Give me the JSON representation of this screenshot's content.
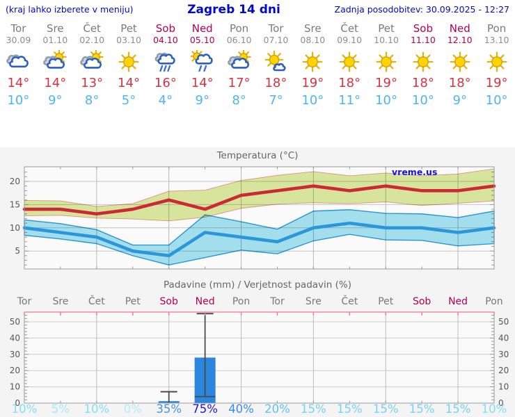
{
  "header": {
    "left_note": "(kraj lahko izberete v meniju)",
    "title": "Zagreb 14 dni",
    "updated": "Zadnja posodobitev: 30.09.2025 - 12:27"
  },
  "colors": {
    "header_blue": "#0009cc",
    "weekday_gray": "#7b7b7b",
    "weekend_crimson": "#b40051",
    "high_temp_red": "#d63240",
    "low_temp_blue": "#4cb5f0",
    "max_band_fill": "#dcea9f",
    "max_band_edge": "#e8937f",
    "max_line": "#cc2936",
    "min_band_fill": "#a6e3f2",
    "min_line": "#2b97da",
    "bar_blue": "#2b87dd",
    "whisker_gray": "#4a4a4a",
    "top_axis_pink": "#e88fa2",
    "watermark_blue": "#1212e6"
  },
  "days": [
    {
      "name": "Tor",
      "date": "30.09",
      "weekend": false,
      "icon": "cloudy",
      "tmax": 14,
      "tmin": 10
    },
    {
      "name": "Sre",
      "date": "01.10",
      "weekend": false,
      "icon": "partly",
      "tmax": 14,
      "tmin": 9
    },
    {
      "name": "Čet",
      "date": "02.10",
      "weekend": false,
      "icon": "partly",
      "tmax": 13,
      "tmin": 8
    },
    {
      "name": "Pet",
      "date": "03.10",
      "weekend": false,
      "icon": "sunny",
      "tmax": 14,
      "tmin": 5
    },
    {
      "name": "Sob",
      "date": "04.10",
      "weekend": true,
      "icon": "rain",
      "tmax": 16,
      "tmin": 4
    },
    {
      "name": "Ned",
      "date": "05.10",
      "weekend": true,
      "icon": "sunrain",
      "tmax": 14,
      "tmin": 9
    },
    {
      "name": "Pon",
      "date": "06.10",
      "weekend": false,
      "icon": "partly",
      "tmax": 17,
      "tmin": 8
    },
    {
      "name": "Tor",
      "date": "07.10",
      "weekend": false,
      "icon": "mostlysunny",
      "tmax": 18,
      "tmin": 7
    },
    {
      "name": "Sre",
      "date": "08.10",
      "weekend": false,
      "icon": "sunny",
      "tmax": 19,
      "tmin": 10
    },
    {
      "name": "Čet",
      "date": "09.10",
      "weekend": false,
      "icon": "sunny",
      "tmax": 18,
      "tmin": 11
    },
    {
      "name": "Pet",
      "date": "10.10",
      "weekend": false,
      "icon": "sunny",
      "tmax": 19,
      "tmin": 10
    },
    {
      "name": "Sob",
      "date": "11.10",
      "weekend": true,
      "icon": "sunny",
      "tmax": 18,
      "tmin": 10
    },
    {
      "name": "Ned",
      "date": "12.10",
      "weekend": true,
      "icon": "sunny",
      "tmax": 18,
      "tmin": 9
    },
    {
      "name": "Pon",
      "date": "13.10",
      "weekend": false,
      "icon": "sunny",
      "tmax": 19,
      "tmin": 10
    }
  ],
  "chart_data": [
    {
      "type": "area",
      "title": "Temperatura (°C)",
      "watermark": "vreme.us",
      "categories": [
        "Tor 30.09",
        "Sre 01.10",
        "Čet 02.10",
        "Pet 03.10",
        "Sob 04.10",
        "Ned 05.10",
        "Pon 06.10",
        "Tor 07.10",
        "Sre 08.10",
        "Čet 09.10",
        "Pet 10.10",
        "Sob 11.10",
        "Ned 12.10",
        "Pon 13.10"
      ],
      "ylim": [
        1,
        23
      ],
      "yticks": [
        5,
        10,
        15,
        20
      ],
      "grid": true,
      "series": [
        {
          "name": "max",
          "values": [
            14,
            14,
            13,
            14,
            16,
            14,
            17,
            18,
            19,
            18,
            19,
            18,
            18,
            19
          ]
        },
        {
          "name": "max_upper",
          "values": [
            15.9,
            15.8,
            14.6,
            15.2,
            17.9,
            18.1,
            20.2,
            21.3,
            22.1,
            21.2,
            21.8,
            21.2,
            21.6,
            22.7
          ]
        },
        {
          "name": "max_lower",
          "values": [
            12.6,
            12.7,
            12.1,
            11.9,
            11.5,
            12.3,
            14.2,
            15.1,
            15.4,
            15.2,
            15.6,
            14.8,
            15.3,
            15.8
          ]
        },
        {
          "name": "min",
          "values": [
            10,
            9,
            8,
            5,
            4,
            9,
            8,
            7,
            10,
            11,
            10,
            10,
            9,
            10
          ]
        },
        {
          "name": "min_upper",
          "values": [
            11.7,
            10.9,
            9.6,
            6.3,
            6.3,
            12.8,
            11.3,
            9.7,
            13.6,
            13.9,
            13.1,
            13.0,
            12.2,
            13.6
          ]
        },
        {
          "name": "min_lower",
          "values": [
            8.4,
            7.6,
            6.6,
            4.0,
            2.0,
            3.6,
            5.2,
            4.4,
            7.2,
            8.6,
            7.4,
            7.3,
            6.1,
            6.6
          ]
        }
      ]
    },
    {
      "type": "bar",
      "title": "Padavine (mm) / Verjetnost padavin (%)",
      "categories": [
        "Tor",
        "Sre",
        "Čet",
        "Pet",
        "Sob",
        "Ned",
        "Pon",
        "Tor",
        "Sre",
        "Čet",
        "Pet",
        "Sob",
        "Ned",
        "Pon"
      ],
      "weekend": [
        false,
        false,
        false,
        false,
        true,
        true,
        false,
        false,
        false,
        false,
        false,
        true,
        true,
        false
      ],
      "values_mm": [
        0,
        0,
        0,
        0,
        1.2,
        28,
        0,
        0,
        0,
        0,
        0,
        0,
        0,
        0
      ],
      "whisker_low": [
        0,
        0,
        0,
        0,
        0,
        4,
        0,
        0,
        0,
        0,
        0,
        0,
        0,
        0
      ],
      "whisker_high": [
        0,
        0,
        0,
        0,
        7,
        55,
        0,
        0,
        0,
        0,
        0,
        0,
        0,
        0
      ],
      "probability_pct": [
        10,
        5,
        10,
        0,
        35,
        75,
        40,
        20,
        15,
        15,
        15,
        15,
        15,
        10
      ],
      "pct_colors": [
        "#87dcf3",
        "#a5e8f7",
        "#87dcf3",
        "#b2edf9",
        "#4596dd",
        "#2315c8",
        "#3a8de5",
        "#60c4ec",
        "#79d1f0",
        "#79d1f0",
        "#79d1f0",
        "#79d1f0",
        "#79d1f0",
        "#87dcf3"
      ],
      "ylim": [
        0,
        50
      ],
      "yticks": [
        0,
        10,
        20,
        30,
        40,
        50
      ],
      "grid": true
    }
  ]
}
